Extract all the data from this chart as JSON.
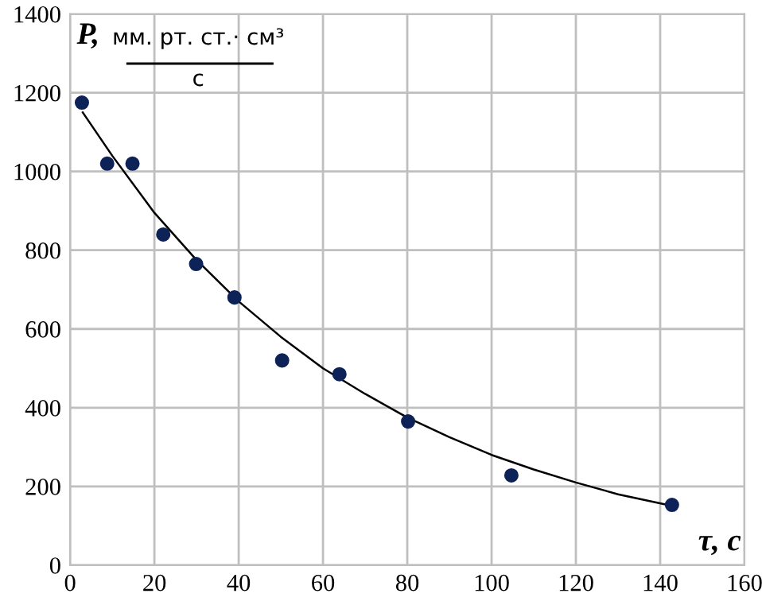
{
  "chart_data": {
    "type": "scatter",
    "ylabel": "P,",
    "xlabel": "τ, с",
    "annotations": [
      "мм. рт. ст.· см³",
      "с"
    ],
    "x": [
      2.8,
      8.8,
      14.8,
      22.1,
      29.9,
      39,
      50.3,
      63.9,
      80.2,
      104.7,
      142.8
    ],
    "series": [
      {
        "color": "#0d2257",
        "values": [
          1175,
          1020,
          1020,
          840,
          765,
          680,
          520,
          485,
          365,
          228,
          153
        ]
      },
      {
        "type": "line",
        "color": "#000000",
        "marker": "none",
        "x": [
          3,
          10,
          20,
          30,
          40,
          50,
          60,
          70,
          80,
          90,
          100,
          110,
          120,
          130,
          143
        ],
        "values": [
          1150,
          1040,
          895,
          775,
          670,
          580,
          500,
          435,
          375,
          325,
          280,
          243,
          210,
          180,
          150
        ]
      }
    ],
    "marker": "circle",
    "grid": true,
    "xlim": [
      0,
      160
    ],
    "xticks": [
      0,
      20,
      40,
      60,
      80,
      100,
      120,
      140,
      160
    ],
    "ylim": [
      0,
      1400
    ],
    "yticks": [
      0,
      200,
      400,
      600,
      800,
      1000,
      1200,
      1400
    ]
  }
}
